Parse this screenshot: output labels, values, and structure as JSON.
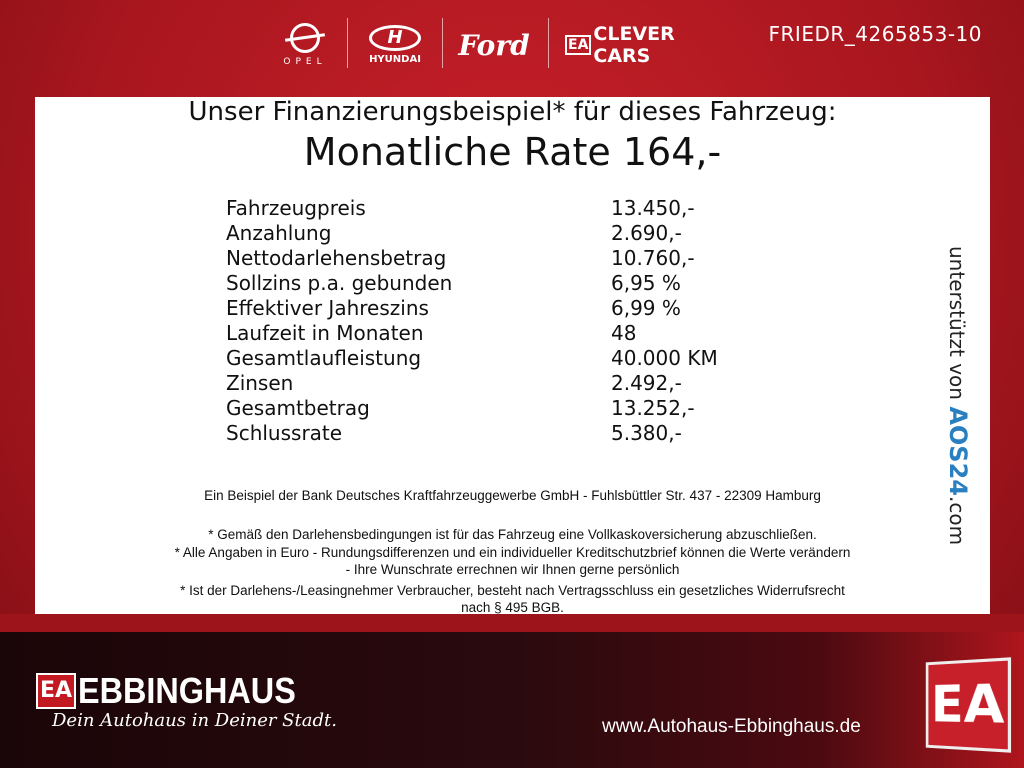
{
  "header": {
    "brands": [
      "OPEL",
      "HYUNDAI",
      "Ford",
      "CLEVER CARS"
    ],
    "clever_badge": "EA",
    "reference": "FRIEDR_4265853-10"
  },
  "offer": {
    "intro": "Unser Finanzierungsbeispiel* für dieses Fahrzeug:",
    "rate": "Monatliche Rate 164,-",
    "rows": [
      {
        "label": "Fahrzeugpreis",
        "value": "13.450,-"
      },
      {
        "label": "Anzahlung",
        "value": "2.690,-"
      },
      {
        "label": "Nettodarlehensbetrag",
        "value": "10.760,-"
      },
      {
        "label": "Sollzins p.a. gebunden",
        "value": "6,95 %"
      },
      {
        "label": "Effektiver Jahreszins",
        "value": "6,99 %"
      },
      {
        "label": "Laufzeit in Monaten",
        "value": "48"
      },
      {
        "label": "Gesamtlaufleistung",
        "value": "40.000 KM"
      },
      {
        "label": "Zinsen",
        "value": "2.492,-"
      },
      {
        "label": "Gesamtbetrag",
        "value": "13.252,-"
      },
      {
        "label": "Schlussrate",
        "value": "5.380,-"
      }
    ],
    "bank": "Ein Beispiel der Bank Deutsches Kraftfahrzeuggewerbe GmbH - Fuhlsbüttler Str. 437 - 22309 Hamburg",
    "notes": [
      "* Gemäß den Darlehensbedingungen ist für das Fahrzeug eine Vollkaskoversicherung abzuschließen.",
      "* Alle Angaben in Euro - Rundungsdifferenzen und ein individueller Kreditschutzbrief können die Werte verändern",
      "- Ihre Wunschrate errechnen wir Ihnen gerne persönlich",
      "* Ist der Darlehens-/Leasingnehmer Verbraucher, besteht nach Vertragsschluss ein gesetzliches Widerrufsrecht",
      "nach § 495 BGB."
    ],
    "supported_by": "unterstützt von",
    "supporter": "AOS24",
    "supporter_tld": ".com"
  },
  "footer": {
    "badge": "EA",
    "dealer": "EBBINGHAUS",
    "slogan": "Dein Autohaus in Deiner Stadt.",
    "url": "www.Autohaus-Ebbinghaus.de"
  },
  "colors": {
    "brand_red": "#b3161e",
    "aos_blue": "#2a7fc1",
    "aos_green": "#7cbf3a"
  }
}
